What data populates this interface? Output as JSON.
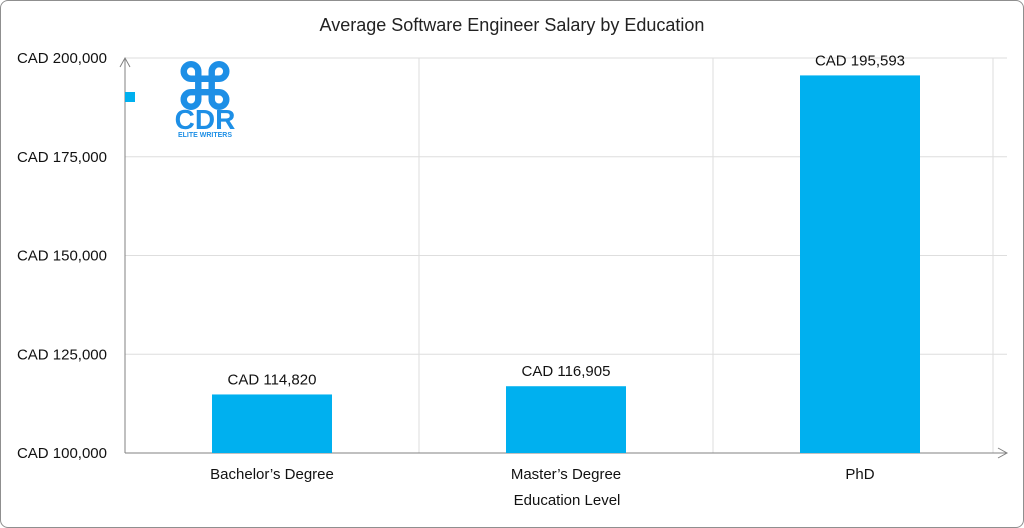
{
  "chart_data": {
    "type": "bar",
    "title": "Average Software Engineer Salary by Education",
    "xlabel": "Education Level",
    "ylabel": "",
    "categories": [
      "Bachelor’s Degree",
      "Master’s Degree",
      "PhD"
    ],
    "values": [
      114820,
      116905,
      195593
    ],
    "value_labels": [
      "CAD 114,820",
      "CAD 116,905",
      "CAD 195,593"
    ],
    "ylim": [
      100000,
      200000
    ],
    "yticks": [
      100000,
      125000,
      150000,
      175000,
      200000
    ],
    "ytick_labels": [
      "CAD 100,000",
      "CAD 125,000",
      "CAD 150,000",
      "CAD 175,000",
      "CAD 200,000"
    ],
    "grid": true,
    "legend": "top-left"
  },
  "colors": {
    "bar": "#00b0ef",
    "grid": "#dedede",
    "axis": "#808080",
    "logo": "#1d8fe6"
  },
  "logo": {
    "mark": "⌘",
    "text": "CDR",
    "subtitle": "ELITE WRITERS"
  }
}
